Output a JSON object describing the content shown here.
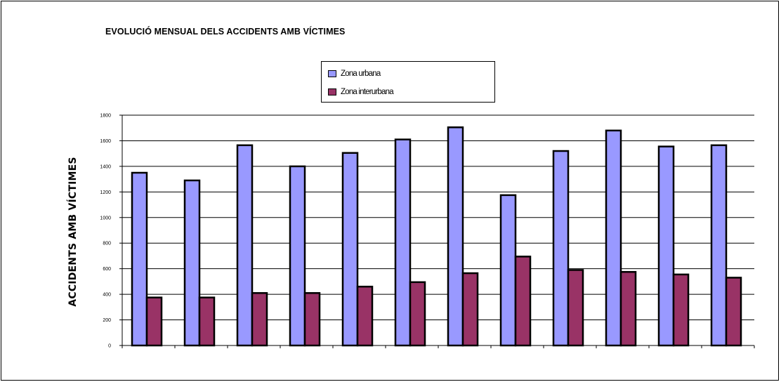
{
  "chart_data": {
    "type": "bar",
    "title": "EVOLUCIÓ MENSUAL DELS ACCIDENTS AMB VÍCTIMES",
    "xlabel": "",
    "ylabel": "ACCIDENTS AMB VÍCTIMES",
    "ylim": [
      0,
      1800
    ],
    "yticks": [
      0,
      200,
      400,
      600,
      800,
      1000,
      1200,
      1400,
      1600,
      1800
    ],
    "grid": true,
    "legend_position": "top-center",
    "categories": [
      "",
      "",
      "",
      "",
      "",
      "",
      "",
      "",
      "",
      "",
      "",
      ""
    ],
    "series": [
      {
        "name": "Zona urbana",
        "color": "#9999ff",
        "values": [
          1350,
          1290,
          1565,
          1400,
          1505,
          1610,
          1705,
          1175,
          1520,
          1680,
          1555,
          1565
        ]
      },
      {
        "name": "Zona interurbana",
        "color": "#993366",
        "values": [
          375,
          375,
          410,
          410,
          460,
          495,
          565,
          695,
          590,
          575,
          555,
          530
        ]
      }
    ]
  }
}
